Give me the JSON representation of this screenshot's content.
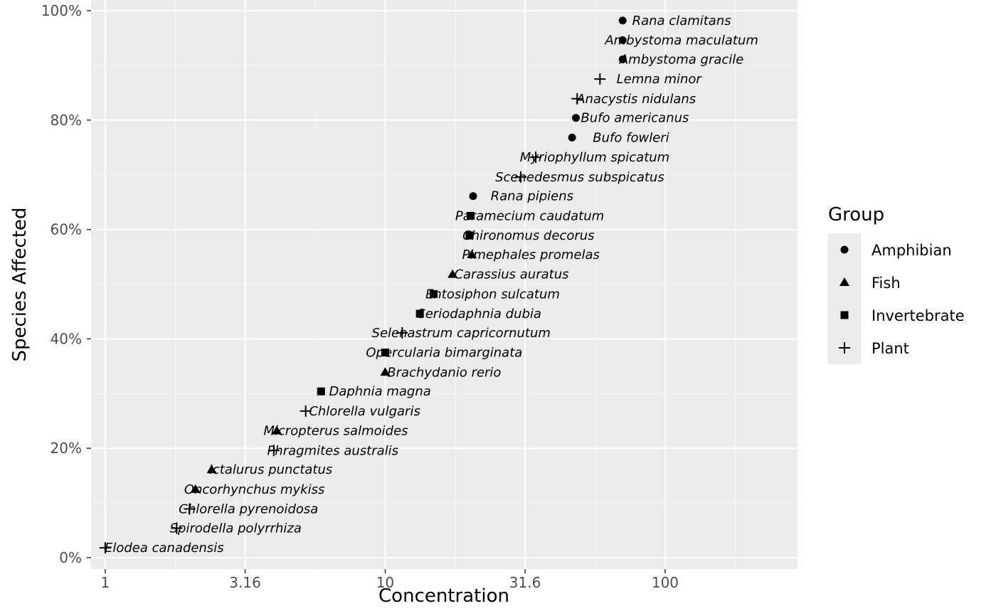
{
  "chart_data": {
    "type": "scatter",
    "title": "",
    "xlabel": "Concentration",
    "ylabel": "Species Affected",
    "x_scale": "log10",
    "xlim": [
      0.89,
      297
    ],
    "ylim": [
      0,
      100
    ],
    "x_ticks": [
      {
        "value": 1,
        "label": "1"
      },
      {
        "value": 3.16,
        "label": "3.16"
      },
      {
        "value": 10,
        "label": "10"
      },
      {
        "value": 31.6,
        "label": "31.6"
      },
      {
        "value": 100,
        "label": "100"
      }
    ],
    "y_ticks": [
      {
        "value": 0,
        "label": "0%"
      },
      {
        "value": 20,
        "label": "20%"
      },
      {
        "value": 40,
        "label": "40%"
      },
      {
        "value": 60,
        "label": "60%"
      },
      {
        "value": 80,
        "label": "80%"
      },
      {
        "value": 100,
        "label": "100%"
      }
    ],
    "grid": true,
    "legend": {
      "title": "Group",
      "position": "right",
      "entries": [
        {
          "name": "Amphibian",
          "shape": "circle"
        },
        {
          "name": "Fish",
          "shape": "triangle"
        },
        {
          "name": "Invertebrate",
          "shape": "square"
        },
        {
          "name": "Plant",
          "shape": "plus"
        }
      ]
    },
    "points": [
      {
        "label": "Elodea canadensis",
        "group": "Plant",
        "x": 1.0,
        "y": 1.8
      },
      {
        "label": "Spirodella polyrrhiza",
        "group": "Plant",
        "x": 1.8,
        "y": 5.4
      },
      {
        "label": "Chlorella pyrenoidosa",
        "group": "Plant",
        "x": 2.0,
        "y": 8.9
      },
      {
        "label": "Oncorhynchus mykiss",
        "group": "Fish",
        "x": 2.1,
        "y": 12.5
      },
      {
        "label": "Ictalurus punctatus",
        "group": "Fish",
        "x": 2.4,
        "y": 16.1
      },
      {
        "label": "Phragmites australis",
        "group": "Plant",
        "x": 4.0,
        "y": 19.6
      },
      {
        "label": "Micropterus salmoides",
        "group": "Fish",
        "x": 4.1,
        "y": 23.2
      },
      {
        "label": "Chlorella vulgaris",
        "group": "Plant",
        "x": 5.2,
        "y": 26.8
      },
      {
        "label": "Daphnia magna",
        "group": "Invertebrate",
        "x": 5.9,
        "y": 30.4
      },
      {
        "label": "Brachydanio rerio",
        "group": "Fish",
        "x": 10.0,
        "y": 33.9
      },
      {
        "label": "Opercularia bimarginata",
        "group": "Invertebrate",
        "x": 10.0,
        "y": 37.5
      },
      {
        "label": "Selenastrum capricornutum",
        "group": "Plant",
        "x": 11.5,
        "y": 41.1
      },
      {
        "label": "Ceriodaphnia dubia",
        "group": "Invertebrate",
        "x": 13.3,
        "y": 44.6
      },
      {
        "label": "Entosiphon sulcatum",
        "group": "Invertebrate",
        "x": 14.9,
        "y": 48.2
      },
      {
        "label": "Carassius auratus",
        "group": "Fish",
        "x": 17.4,
        "y": 51.8
      },
      {
        "label": "Pimephales promelas",
        "group": "Fish",
        "x": 20.4,
        "y": 55.4
      },
      {
        "label": "Chironomus decorus",
        "group": "Invertebrate",
        "x": 20.0,
        "y": 58.9
      },
      {
        "label": "Paramecium caudatum",
        "group": "Invertebrate",
        "x": 20.2,
        "y": 62.5
      },
      {
        "label": "Rana pipiens",
        "group": "Amphibian",
        "x": 20.6,
        "y": 66.1
      },
      {
        "label": "Scenedesmus subspicatus",
        "group": "Plant",
        "x": 30.5,
        "y": 69.6
      },
      {
        "label": "Myriophyllum spicatum",
        "group": "Plant",
        "x": 34.5,
        "y": 73.2
      },
      {
        "label": "Bufo fowleri",
        "group": "Amphibian",
        "x": 46.5,
        "y": 76.8
      },
      {
        "label": "Bufo americanus",
        "group": "Amphibian",
        "x": 48.0,
        "y": 80.4
      },
      {
        "label": "Anacystis nidulans",
        "group": "Plant",
        "x": 48.5,
        "y": 83.9
      },
      {
        "label": "Lemna minor",
        "group": "Plant",
        "x": 58.5,
        "y": 87.5
      },
      {
        "label": "Ambystoma gracile",
        "group": "Amphibian",
        "x": 70.5,
        "y": 91.1
      },
      {
        "label": "Ambystoma maculatum",
        "group": "Amphibian",
        "x": 70.5,
        "y": 94.6
      },
      {
        "label": "Rana clamitans",
        "group": "Amphibian",
        "x": 70.5,
        "y": 98.2
      }
    ]
  }
}
